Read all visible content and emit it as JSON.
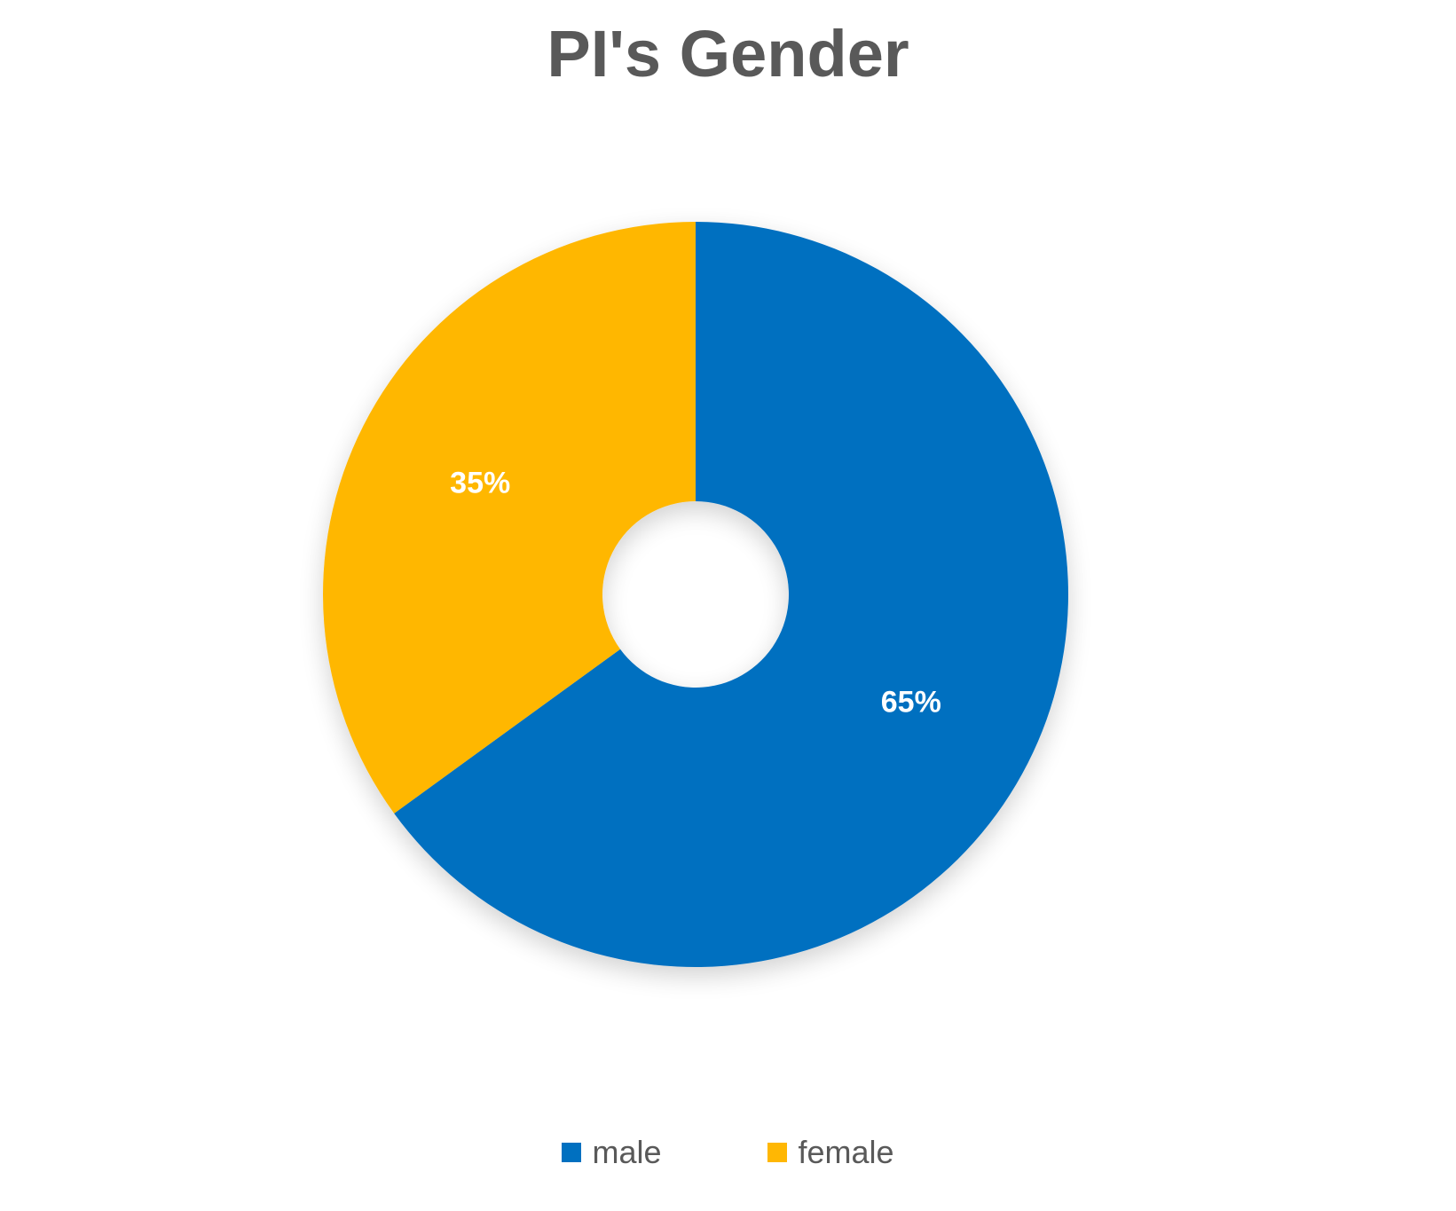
{
  "chart_data": {
    "type": "pie",
    "variant": "doughnut",
    "title": "PI's Gender",
    "categories": [
      "male",
      "female"
    ],
    "values": [
      65,
      35
    ],
    "data_labels": [
      "65%",
      "35%"
    ],
    "colors": [
      "#0070C0",
      "#FFB703"
    ],
    "legend_position": "bottom",
    "start_angle": "12 o'clock, clockwise"
  }
}
